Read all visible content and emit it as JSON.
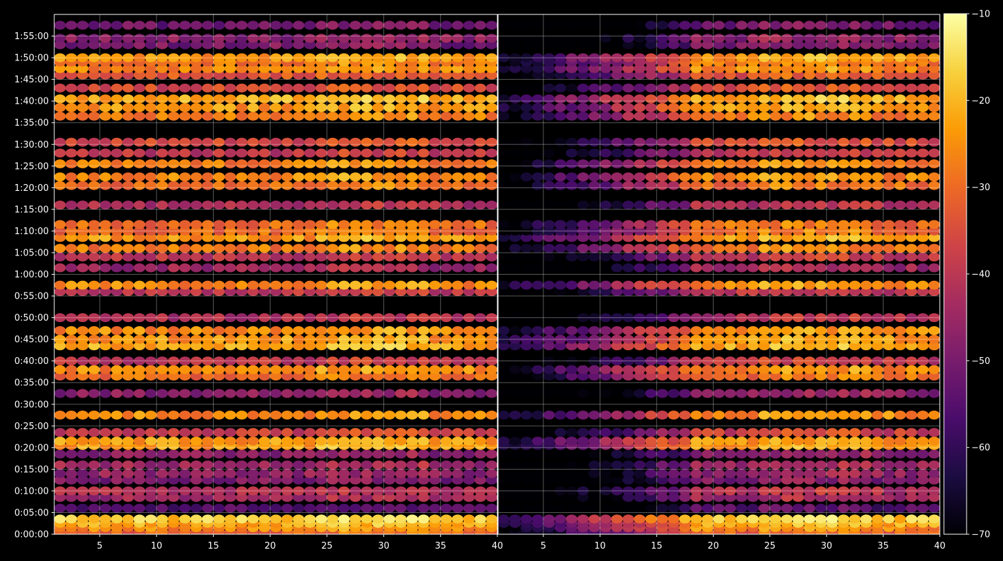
{
  "chart_data": [
    {
      "type": "heatmap",
      "title": "",
      "xlabel": "",
      "ylabel": "",
      "xlim": [
        1,
        40
      ],
      "ylim_seconds": [
        0,
        7200
      ],
      "x_ticks": [
        "5",
        "10",
        "15",
        "20",
        "25",
        "30",
        "35",
        "40"
      ],
      "y_ticks": [
        "0:00:00",
        "0:05:00",
        "0:10:00",
        "0:15:00",
        "0:20:00",
        "0:25:00",
        "0:30:00",
        "0:35:00",
        "0:40:00",
        "0:45:00",
        "0:50:00",
        "0:55:00",
        "1:00:00",
        "1:05:00",
        "1:10:00",
        "1:15:00",
        "1:20:00",
        "1:25:00",
        "1:30:00",
        "1:35:00",
        "1:40:00",
        "1:45:00",
        "1:50:00",
        "1:55:00"
      ],
      "grid": true,
      "channels": 39,
      "row_profile": [
        {
          "t": "0:00:30",
          "value": -32
        },
        {
          "t": "0:01:30",
          "value": -26
        },
        {
          "t": "0:02:30",
          "value": -22
        },
        {
          "t": "0:03:30",
          "value": -18
        },
        {
          "t": "0:06:00",
          "value": -56
        },
        {
          "t": "0:08:30",
          "value": -45
        },
        {
          "t": "0:10:00",
          "value": -42
        },
        {
          "t": "0:12:30",
          "value": -50
        },
        {
          "t": "0:14:00",
          "value": -47
        },
        {
          "t": "0:16:00",
          "value": -45
        },
        {
          "t": "0:18:30",
          "value": -48
        },
        {
          "t": "0:20:30",
          "value": -24
        },
        {
          "t": "0:21:30",
          "value": -24
        },
        {
          "t": "0:23:30",
          "value": -38
        },
        {
          "t": "0:27:30",
          "value": -26
        },
        {
          "t": "0:32:30",
          "value": -48
        },
        {
          "t": "0:36:30",
          "value": -30
        },
        {
          "t": "0:38:00",
          "value": -26
        },
        {
          "t": "0:40:00",
          "value": -40
        },
        {
          "t": "0:43:30",
          "value": -22
        },
        {
          "t": "0:45:00",
          "value": -24
        },
        {
          "t": "0:47:00",
          "value": -26
        },
        {
          "t": "0:50:00",
          "value": -42
        },
        {
          "t": "0:56:00",
          "value": -40
        },
        {
          "t": "0:57:30",
          "value": -26
        },
        {
          "t": "1:01:30",
          "value": -45
        },
        {
          "t": "1:04:00",
          "value": -40
        },
        {
          "t": "1:06:00",
          "value": -28
        },
        {
          "t": "1:08:30",
          "value": -24
        },
        {
          "t": "1:10:00",
          "value": -30
        },
        {
          "t": "1:11:30",
          "value": -30
        },
        {
          "t": "1:16:00",
          "value": -42
        },
        {
          "t": "1:20:30",
          "value": -30
        },
        {
          "t": "1:22:30",
          "value": -26
        },
        {
          "t": "1:25:30",
          "value": -28
        },
        {
          "t": "1:28:00",
          "value": -40
        },
        {
          "t": "1:30:30",
          "value": -36
        },
        {
          "t": "1:36:30",
          "value": -28
        },
        {
          "t": "1:38:30",
          "value": -24
        },
        {
          "t": "1:40:30",
          "value": -22
        },
        {
          "t": "1:43:00",
          "value": -36
        },
        {
          "t": "1:46:00",
          "value": -34
        },
        {
          "t": "1:47:30",
          "value": -26
        },
        {
          "t": "1:49:00",
          "value": -28
        },
        {
          "t": "1:50:00",
          "value": -24
        },
        {
          "t": "1:53:00",
          "value": -50
        },
        {
          "t": "1:54:30",
          "value": -48
        },
        {
          "t": "1:57:30",
          "value": -52
        }
      ]
    },
    {
      "type": "heatmap",
      "title": "",
      "xlabel": "",
      "ylabel": "",
      "xlim": [
        1,
        40
      ],
      "x_ticks": [
        "5",
        "10",
        "15",
        "20",
        "25",
        "30",
        "35",
        "40"
      ],
      "grid": true,
      "note_low_channels_dimmer": true
    }
  ],
  "colorbar": {
    "colormap": "inferno",
    "vmin": -70,
    "vmax": -10,
    "ticks": [
      "−10",
      "−20",
      "−30",
      "−40",
      "−50",
      "−60",
      "−70"
    ],
    "stops": [
      "#000004",
      "#1b0c41",
      "#4a0c6b",
      "#781c6d",
      "#a52c60",
      "#cf4446",
      "#ed6925",
      "#fb9b06",
      "#f7d13d",
      "#fcffa4"
    ]
  },
  "colors": {
    "background": "#000000",
    "text": "#ffffff",
    "grid": "#ffffff"
  }
}
